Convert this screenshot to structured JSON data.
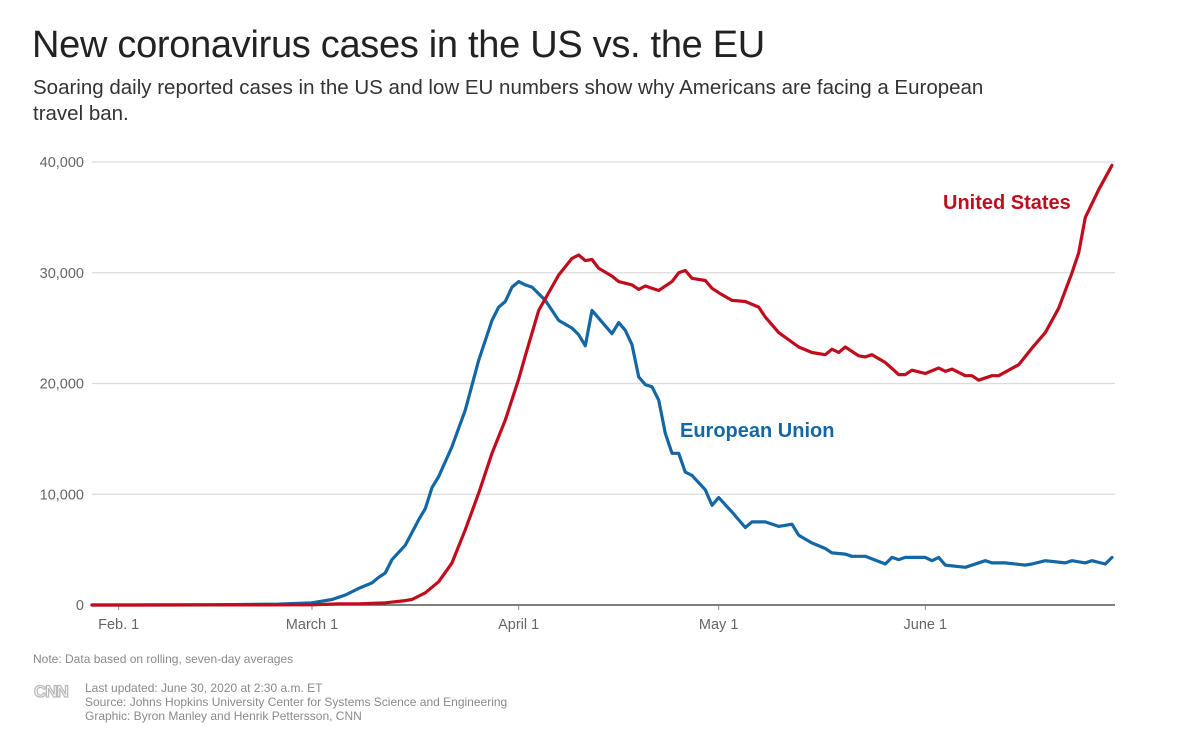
{
  "title": "New coronavirus cases in the US vs. the EU",
  "subtitle": "Soaring daily reported cases in the US and low EU numbers show why Americans are facing a European travel ban.",
  "note": "Note: Data based on rolling, seven-day averages",
  "footer": {
    "logo": "CNN",
    "updated": "Last updated: June 30, 2020 at 2:30 a.m. ET",
    "source": "Source: Johns Hopkins University Center for Systems Science and Engineering",
    "graphic": "Graphic: Byron Manley and Henrik Pettersson, CNN"
  },
  "chart_data": {
    "type": "line",
    "title": "New coronavirus cases in the US vs. the EU",
    "xlabel": "",
    "ylabel": "",
    "ylim": [
      0,
      40000
    ],
    "xlim": [
      "2020-01-28",
      "2020-06-29"
    ],
    "grid": true,
    "y_ticks": [
      {
        "v": 0,
        "label": "0"
      },
      {
        "v": 10000,
        "label": "10,000"
      },
      {
        "v": 20000,
        "label": "20,000"
      },
      {
        "v": 30000,
        "label": "30,000"
      },
      {
        "v": 40000,
        "label": "40,000"
      }
    ],
    "x_ticks": [
      {
        "d": "2020-02-01",
        "label": "Feb. 1"
      },
      {
        "d": "2020-03-01",
        "label": "March 1"
      },
      {
        "d": "2020-04-01",
        "label": "April 1"
      },
      {
        "d": "2020-05-01",
        "label": "May 1"
      },
      {
        "d": "2020-06-01",
        "label": "June 1"
      }
    ],
    "series": [
      {
        "name": "United States",
        "color": "#c00d1e",
        "points": [
          [
            "2020-01-28",
            0
          ],
          [
            "2020-02-15",
            5
          ],
          [
            "2020-03-01",
            20
          ],
          [
            "2020-03-05",
            100
          ],
          [
            "2020-03-08",
            100
          ],
          [
            "2020-03-12",
            200
          ],
          [
            "2020-03-15",
            400
          ],
          [
            "2020-03-16",
            500
          ],
          [
            "2020-03-18",
            1100
          ],
          [
            "2020-03-20",
            2100
          ],
          [
            "2020-03-22",
            3800
          ],
          [
            "2020-03-24",
            6800
          ],
          [
            "2020-03-26",
            10100
          ],
          [
            "2020-03-28",
            13700
          ],
          [
            "2020-03-30",
            16700
          ],
          [
            "2020-04-01",
            20400
          ],
          [
            "2020-04-02",
            22500
          ],
          [
            "2020-04-04",
            26600
          ],
          [
            "2020-04-07",
            29800
          ],
          [
            "2020-04-09",
            31300
          ],
          [
            "2020-04-10",
            31600
          ],
          [
            "2020-04-11",
            31100
          ],
          [
            "2020-04-12",
            31200
          ],
          [
            "2020-04-13",
            30400
          ],
          [
            "2020-04-15",
            29700
          ],
          [
            "2020-04-16",
            29200
          ],
          [
            "2020-04-18",
            28900
          ],
          [
            "2020-04-19",
            28500
          ],
          [
            "2020-04-20",
            28800
          ],
          [
            "2020-04-22",
            28400
          ],
          [
            "2020-04-24",
            29200
          ],
          [
            "2020-04-25",
            30000
          ],
          [
            "2020-04-26",
            30200
          ],
          [
            "2020-04-27",
            29500
          ],
          [
            "2020-04-29",
            29300
          ],
          [
            "2020-04-30",
            28600
          ],
          [
            "2020-05-01",
            28200
          ],
          [
            "2020-05-03",
            27500
          ],
          [
            "2020-05-05",
            27400
          ],
          [
            "2020-05-07",
            26900
          ],
          [
            "2020-05-08",
            26000
          ],
          [
            "2020-05-10",
            24600
          ],
          [
            "2020-05-13",
            23300
          ],
          [
            "2020-05-15",
            22800
          ],
          [
            "2020-05-17",
            22600
          ],
          [
            "2020-05-18",
            23100
          ],
          [
            "2020-05-19",
            22800
          ],
          [
            "2020-05-20",
            23300
          ],
          [
            "2020-05-22",
            22500
          ],
          [
            "2020-05-23",
            22400
          ],
          [
            "2020-05-24",
            22600
          ],
          [
            "2020-05-26",
            21900
          ],
          [
            "2020-05-28",
            20800
          ],
          [
            "2020-05-29",
            20800
          ],
          [
            "2020-05-30",
            21200
          ],
          [
            "2020-06-01",
            20900
          ],
          [
            "2020-06-03",
            21400
          ],
          [
            "2020-06-04",
            21100
          ],
          [
            "2020-06-05",
            21300
          ],
          [
            "2020-06-07",
            20700
          ],
          [
            "2020-06-08",
            20700
          ],
          [
            "2020-06-09",
            20300
          ],
          [
            "2020-06-11",
            20700
          ],
          [
            "2020-06-12",
            20700
          ],
          [
            "2020-06-15",
            21700
          ],
          [
            "2020-06-17",
            23200
          ],
          [
            "2020-06-19",
            24600
          ],
          [
            "2020-06-21",
            26800
          ],
          [
            "2020-06-23",
            30000
          ],
          [
            "2020-06-24",
            31800
          ],
          [
            "2020-06-25",
            35000
          ],
          [
            "2020-06-27",
            37500
          ],
          [
            "2020-06-29",
            39700
          ]
        ]
      },
      {
        "name": "European Union",
        "color": "#1467a5",
        "points": [
          [
            "2020-01-28",
            0
          ],
          [
            "2020-02-15",
            10
          ],
          [
            "2020-02-25",
            80
          ],
          [
            "2020-03-01",
            200
          ],
          [
            "2020-03-04",
            500
          ],
          [
            "2020-03-06",
            900
          ],
          [
            "2020-03-08",
            1500
          ],
          [
            "2020-03-10",
            2000
          ],
          [
            "2020-03-11",
            2500
          ],
          [
            "2020-03-12",
            2900
          ],
          [
            "2020-03-13",
            4100
          ],
          [
            "2020-03-15",
            5400
          ],
          [
            "2020-03-17",
            7700
          ],
          [
            "2020-03-18",
            8700
          ],
          [
            "2020-03-19",
            10600
          ],
          [
            "2020-03-20",
            11600
          ],
          [
            "2020-03-22",
            14300
          ],
          [
            "2020-03-24",
            17600
          ],
          [
            "2020-03-26",
            22100
          ],
          [
            "2020-03-28",
            25700
          ],
          [
            "2020-03-29",
            26900
          ],
          [
            "2020-03-30",
            27400
          ],
          [
            "2020-03-31",
            28700
          ],
          [
            "2020-04-01",
            29200
          ],
          [
            "2020-04-02",
            28900
          ],
          [
            "2020-04-03",
            28700
          ],
          [
            "2020-04-05",
            27500
          ],
          [
            "2020-04-06",
            26600
          ],
          [
            "2020-04-07",
            25700
          ],
          [
            "2020-04-09",
            25000
          ],
          [
            "2020-04-10",
            24400
          ],
          [
            "2020-04-11",
            23400
          ],
          [
            "2020-04-12",
            26600
          ],
          [
            "2020-04-13",
            25900
          ],
          [
            "2020-04-15",
            24500
          ],
          [
            "2020-04-16",
            25500
          ],
          [
            "2020-04-17",
            24800
          ],
          [
            "2020-04-18",
            23500
          ],
          [
            "2020-04-19",
            20600
          ],
          [
            "2020-04-20",
            19900
          ],
          [
            "2020-04-21",
            19700
          ],
          [
            "2020-04-22",
            18500
          ],
          [
            "2020-04-23",
            15500
          ],
          [
            "2020-04-24",
            13700
          ],
          [
            "2020-04-25",
            13700
          ],
          [
            "2020-04-26",
            12000
          ],
          [
            "2020-04-27",
            11700
          ],
          [
            "2020-04-29",
            10400
          ],
          [
            "2020-04-30",
            9000
          ],
          [
            "2020-05-01",
            9700
          ],
          [
            "2020-05-03",
            8400
          ],
          [
            "2020-05-05",
            7000
          ],
          [
            "2020-05-06",
            7500
          ],
          [
            "2020-05-08",
            7500
          ],
          [
            "2020-05-10",
            7100
          ],
          [
            "2020-05-12",
            7300
          ],
          [
            "2020-05-13",
            6300
          ],
          [
            "2020-05-15",
            5600
          ],
          [
            "2020-05-17",
            5100
          ],
          [
            "2020-05-18",
            4700
          ],
          [
            "2020-05-20",
            4600
          ],
          [
            "2020-05-21",
            4400
          ],
          [
            "2020-05-23",
            4400
          ],
          [
            "2020-05-26",
            3700
          ],
          [
            "2020-05-27",
            4300
          ],
          [
            "2020-05-28",
            4100
          ],
          [
            "2020-05-29",
            4300
          ],
          [
            "2020-06-01",
            4300
          ],
          [
            "2020-06-02",
            4000
          ],
          [
            "2020-06-03",
            4300
          ],
          [
            "2020-06-04",
            3600
          ],
          [
            "2020-06-07",
            3400
          ],
          [
            "2020-06-10",
            4000
          ],
          [
            "2020-06-11",
            3800
          ],
          [
            "2020-06-13",
            3800
          ],
          [
            "2020-06-16",
            3600
          ],
          [
            "2020-06-17",
            3700
          ],
          [
            "2020-06-19",
            4000
          ],
          [
            "2020-06-22",
            3800
          ],
          [
            "2020-06-23",
            4000
          ],
          [
            "2020-06-25",
            3800
          ],
          [
            "2020-06-26",
            4000
          ],
          [
            "2020-06-28",
            3700
          ],
          [
            "2020-06-29",
            4300
          ]
        ]
      }
    ]
  }
}
